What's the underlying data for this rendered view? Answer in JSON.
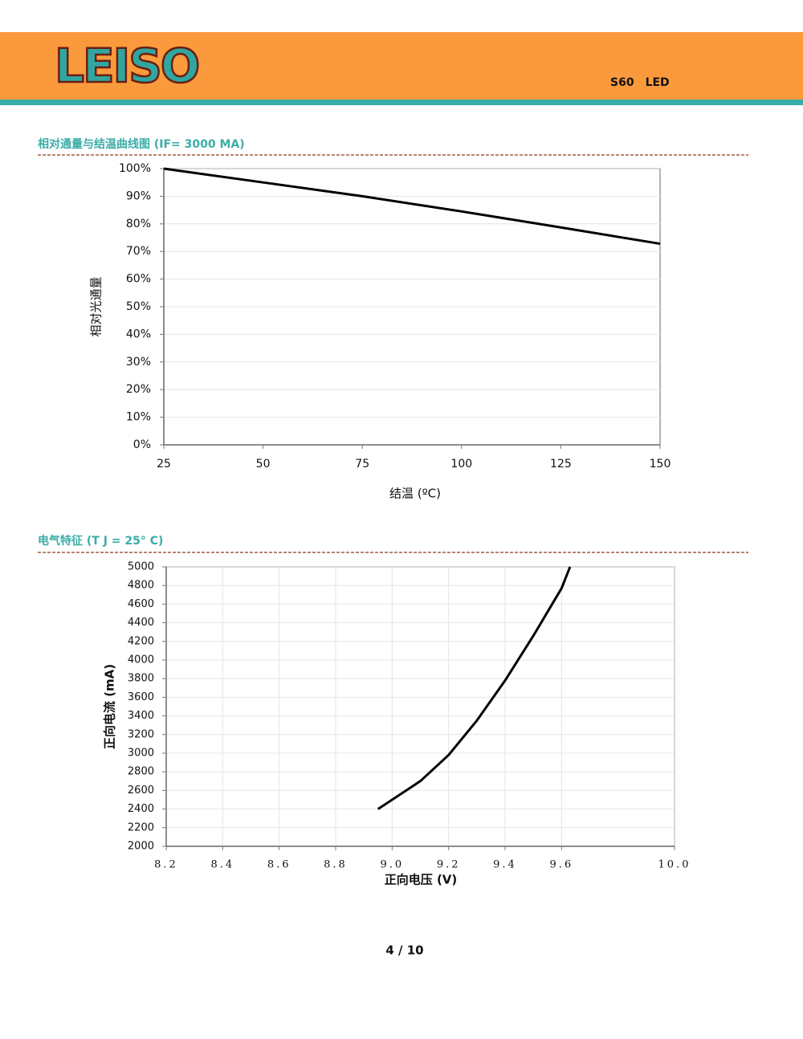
{
  "header": {
    "logo": "LEISO",
    "product": "S60　LED"
  },
  "chart_data": [
    {
      "type": "line",
      "title": "相对通量与结温曲线图 (IF= 3000 MA)",
      "x_label": "结温 (ºC)",
      "y_label": "相对光通量",
      "x": [
        25,
        50,
        75,
        100,
        125,
        150
      ],
      "values": [
        100,
        95,
        90,
        84.5,
        78.7,
        72.8
      ],
      "color": "#000000",
      "xlim": [
        25,
        150
      ],
      "xticks": [
        25,
        50,
        75,
        100,
        125,
        150
      ],
      "ylim": [
        0,
        100
      ],
      "yticks": [
        {
          "value": 0,
          "label": "0%"
        },
        {
          "value": 10,
          "label": "10%"
        },
        {
          "value": 20,
          "label": "20%"
        },
        {
          "value": 30,
          "label": "30%"
        },
        {
          "value": 40,
          "label": "40%"
        },
        {
          "value": 50,
          "label": "50%"
        },
        {
          "value": 60,
          "label": "60%"
        },
        {
          "value": 70,
          "label": "70%"
        },
        {
          "value": 80,
          "label": "80%"
        },
        {
          "value": 90,
          "label": "90%"
        },
        {
          "value": 100,
          "label": "100%"
        }
      ],
      "grid": "y"
    },
    {
      "type": "line",
      "title": "电气特征 (T J = 25° C)",
      "x_label": "正向电压 (V)",
      "y_label": "正向电流 (mA)",
      "x": [
        8.95,
        9.1,
        9.2,
        9.3,
        9.4,
        9.5,
        9.6,
        9.63
      ],
      "values": [
        2400,
        2700,
        2980,
        3350,
        3780,
        4260,
        4770,
        5000
      ],
      "color": "#000000",
      "xlim": [
        8.2,
        10
      ],
      "xticks": [
        8.2,
        8.4,
        8.6,
        8.8,
        {
          "value": 9,
          "label": "9.0"
        },
        9.2,
        9.4,
        9.6,
        {
          "value": 10,
          "label": "10.0"
        }
      ],
      "ylim": [
        2000,
        5000
      ],
      "yticks": [
        2000,
        2200,
        2400,
        2600,
        2800,
        3000,
        3200,
        3400,
        3600,
        3800,
        4000,
        4200,
        4400,
        4600,
        4800,
        5000
      ],
      "grid": "both"
    }
  ],
  "footer": {
    "page": "4 / 10"
  }
}
